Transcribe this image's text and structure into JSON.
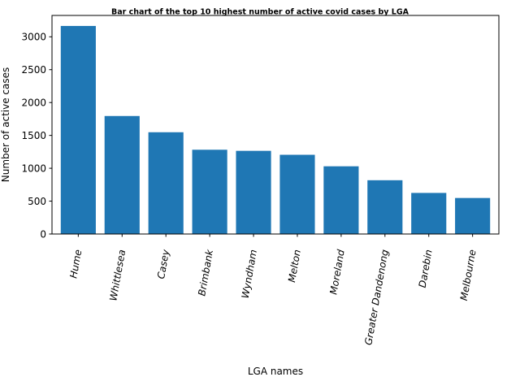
{
  "chart_data": {
    "type": "bar",
    "title": "Bar chart of the top 10 highest number of active covid cases by LGA",
    "xlabel": "LGA names",
    "ylabel": "Number of active cases",
    "categories": [
      "Hume",
      "Whittlesea",
      "Casey",
      "Brimbank",
      "Wyndham",
      "Melton",
      "Moreland",
      "Greater Dandenong",
      "Darebin",
      "Melbourne"
    ],
    "values": [
      3165,
      1795,
      1548,
      1282,
      1265,
      1205,
      1030,
      818,
      625,
      548
    ],
    "ylim": [
      0,
      3325
    ],
    "yticks": [
      0,
      500,
      1000,
      1500,
      2000,
      2500,
      3000
    ],
    "ytick_labels": [
      "0",
      "500",
      "1000",
      "1500",
      "2000",
      "2500",
      "3000"
    ],
    "bar_color": "#1f77b4",
    "grid": false,
    "x_tick_rotation": "rotated ~80°"
  }
}
